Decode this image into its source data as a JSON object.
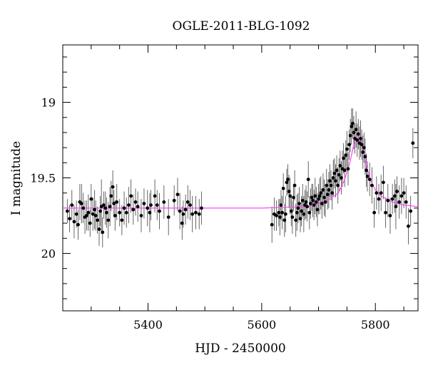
{
  "chart_data": {
    "type": "scatter",
    "title": "OGLE-2011-BLG-1092",
    "xlabel": "HJD - 2450000",
    "ylabel": "I magnitude",
    "xlim": [
      5250,
      5875
    ],
    "ylim": [
      20.38,
      18.62
    ],
    "y_inverted": true,
    "x_major_ticks": [
      5400,
      5600,
      5800
    ],
    "y_major_ticks": [
      19,
      19.5,
      20
    ],
    "grid": false,
    "legend": "none",
    "colors": {
      "points": "#000000",
      "model": "#ff44ff",
      "frame": "#000000"
    },
    "model": {
      "baseline_mag": 19.7,
      "curve": [
        [
          5250,
          19.7
        ],
        [
          5600,
          19.7
        ],
        [
          5680,
          19.69
        ],
        [
          5700,
          19.67
        ],
        [
          5720,
          19.64
        ],
        [
          5735,
          19.6
        ],
        [
          5745,
          19.52
        ],
        [
          5755,
          19.4
        ],
        [
          5762,
          19.28
        ],
        [
          5767,
          19.21
        ],
        [
          5772,
          19.22
        ],
        [
          5778,
          19.3
        ],
        [
          5785,
          19.43
        ],
        [
          5792,
          19.52
        ],
        [
          5800,
          19.58
        ],
        [
          5810,
          19.62
        ],
        [
          5830,
          19.66
        ],
        [
          5850,
          19.68
        ],
        [
          5875,
          19.69
        ]
      ]
    },
    "series": [
      {
        "points": [
          [
            5258,
            19.72,
            0.08
          ],
          [
            5262,
            19.77,
            0.09
          ],
          [
            5266,
            19.68,
            0.1
          ],
          [
            5270,
            19.79,
            0.11
          ],
          [
            5274,
            19.74,
            0.09
          ],
          [
            5277,
            19.81,
            0.1
          ],
          [
            5280,
            19.66,
            0.12
          ],
          [
            5283,
            19.67,
            0.13
          ],
          [
            5286,
            19.7,
            0.1
          ],
          [
            5289,
            19.76,
            0.11
          ],
          [
            5292,
            19.75,
            0.1
          ],
          [
            5295,
            19.73,
            0.12
          ],
          [
            5298,
            19.8,
            0.09
          ],
          [
            5300,
            19.64,
            0.1
          ],
          [
            5303,
            19.74,
            0.11
          ],
          [
            5306,
            19.71,
            0.13
          ],
          [
            5308,
            19.75,
            0.1
          ],
          [
            5311,
            19.78,
            0.09
          ],
          [
            5314,
            19.84,
            0.11
          ],
          [
            5316,
            19.72,
            0.1
          ],
          [
            5318,
            19.69,
            0.18
          ],
          [
            5320,
            19.86,
            0.1
          ],
          [
            5322,
            19.68,
            0.09
          ],
          [
            5325,
            19.7,
            0.11
          ],
          [
            5327,
            19.73,
            0.1
          ],
          [
            5330,
            19.78,
            0.12
          ],
          [
            5333,
            19.69,
            0.13
          ],
          [
            5335,
            19.62,
            0.1
          ],
          [
            5338,
            19.56,
            0.11
          ],
          [
            5340,
            19.67,
            0.09
          ],
          [
            5342,
            19.75,
            0.1
          ],
          [
            5345,
            19.66,
            0.12
          ],
          [
            5350,
            19.73,
            0.09
          ],
          [
            5354,
            19.78,
            0.1
          ],
          [
            5358,
            19.7,
            0.11
          ],
          [
            5362,
            19.73,
            0.1
          ],
          [
            5366,
            19.68,
            0.12
          ],
          [
            5370,
            19.62,
            0.11
          ],
          [
            5374,
            19.71,
            0.1
          ],
          [
            5378,
            19.66,
            0.09
          ],
          [
            5382,
            19.69,
            0.1
          ],
          [
            5388,
            19.75,
            0.11
          ],
          [
            5393,
            19.67,
            0.1
          ],
          [
            5399,
            19.7,
            0.12
          ],
          [
            5403,
            19.73,
            0.13
          ],
          [
            5405,
            19.68,
            0.1
          ],
          [
            5412,
            19.62,
            0.11
          ],
          [
            5416,
            19.68,
            0.1
          ],
          [
            5420,
            19.72,
            0.12
          ],
          [
            5428,
            19.66,
            0.11
          ],
          [
            5436,
            19.76,
            0.12
          ],
          [
            5446,
            19.65,
            0.1
          ],
          [
            5452,
            19.61,
            0.11
          ],
          [
            5456,
            19.72,
            0.12
          ],
          [
            5460,
            19.8,
            0.11
          ],
          [
            5462,
            19.74,
            0.09
          ],
          [
            5466,
            19.71,
            0.1
          ],
          [
            5470,
            19.66,
            0.11
          ],
          [
            5474,
            19.68,
            0.1
          ],
          [
            5478,
            19.74,
            0.12
          ],
          [
            5484,
            19.73,
            0.11
          ],
          [
            5490,
            19.74,
            0.1
          ],
          [
            5494,
            19.7,
            0.11
          ],
          [
            5618,
            19.81,
            0.12
          ],
          [
            5622,
            19.74,
            0.11
          ],
          [
            5626,
            19.75,
            0.1
          ],
          [
            5630,
            19.73,
            0.09
          ],
          [
            5632,
            19.76,
            0.12
          ],
          [
            5634,
            19.68,
            0.1
          ],
          [
            5636,
            19.73,
            0.11
          ],
          [
            5638,
            19.57,
            0.1
          ],
          [
            5640,
            19.78,
            0.11
          ],
          [
            5642,
            19.74,
            0.12
          ],
          [
            5644,
            19.53,
            0.09
          ],
          [
            5646,
            19.51,
            0.1
          ],
          [
            5648,
            19.59,
            0.11
          ],
          [
            5650,
            19.62,
            0.12
          ],
          [
            5652,
            19.72,
            0.1
          ],
          [
            5654,
            19.76,
            0.11
          ],
          [
            5656,
            19.63,
            0.09
          ],
          [
            5658,
            19.55,
            0.1
          ],
          [
            5660,
            19.78,
            0.11
          ],
          [
            5662,
            19.73,
            0.12
          ],
          [
            5664,
            19.7,
            0.1
          ],
          [
            5666,
            19.67,
            0.11
          ],
          [
            5668,
            19.77,
            0.09
          ],
          [
            5670,
            19.72,
            0.1
          ],
          [
            5672,
            19.65,
            0.11
          ],
          [
            5674,
            19.74,
            0.12
          ],
          [
            5676,
            19.68,
            0.1
          ],
          [
            5678,
            19.66,
            0.11
          ],
          [
            5680,
            19.69,
            0.1
          ],
          [
            5682,
            19.51,
            0.12
          ],
          [
            5684,
            19.73,
            0.11
          ],
          [
            5686,
            19.67,
            0.1
          ],
          [
            5688,
            19.63,
            0.09
          ],
          [
            5690,
            19.65,
            0.11
          ],
          [
            5692,
            19.68,
            0.1
          ],
          [
            5694,
            19.62,
            0.12
          ],
          [
            5696,
            19.66,
            0.1
          ],
          [
            5698,
            19.71,
            0.11
          ],
          [
            5700,
            19.64,
            0.1
          ],
          [
            5702,
            19.62,
            0.12
          ],
          [
            5704,
            19.6,
            0.11
          ],
          [
            5706,
            19.67,
            0.1
          ],
          [
            5708,
            19.58,
            0.11
          ],
          [
            5710,
            19.63,
            0.12
          ],
          [
            5712,
            19.66,
            0.1
          ],
          [
            5714,
            19.55,
            0.11
          ],
          [
            5716,
            19.61,
            0.1
          ],
          [
            5718,
            19.58,
            0.12
          ],
          [
            5720,
            19.52,
            0.11
          ],
          [
            5722,
            19.55,
            0.1
          ],
          [
            5724,
            19.6,
            0.11
          ],
          [
            5726,
            19.5,
            0.12
          ],
          [
            5728,
            19.47,
            0.1
          ],
          [
            5730,
            19.52,
            0.11
          ],
          [
            5732,
            19.45,
            0.1
          ],
          [
            5734,
            19.55,
            0.12
          ],
          [
            5736,
            19.48,
            0.11
          ],
          [
            5738,
            19.42,
            0.1
          ],
          [
            5740,
            19.5,
            0.11
          ],
          [
            5742,
            19.44,
            0.12
          ],
          [
            5744,
            19.37,
            0.1
          ],
          [
            5746,
            19.45,
            0.11
          ],
          [
            5748,
            19.35,
            0.1
          ],
          [
            5750,
            19.31,
            0.12
          ],
          [
            5752,
            19.44,
            0.11
          ],
          [
            5754,
            19.28,
            0.1
          ],
          [
            5756,
            19.22,
            0.11
          ],
          [
            5758,
            19.16,
            0.12
          ],
          [
            5760,
            19.14,
            0.1
          ],
          [
            5762,
            19.2,
            0.11
          ],
          [
            5764,
            19.24,
            0.1
          ],
          [
            5766,
            19.18,
            0.12
          ],
          [
            5768,
            19.25,
            0.11
          ],
          [
            5770,
            19.21,
            0.1
          ],
          [
            5772,
            19.27,
            0.11
          ],
          [
            5774,
            19.24,
            0.12
          ],
          [
            5776,
            19.28,
            0.1
          ],
          [
            5778,
            19.33,
            0.11
          ],
          [
            5780,
            19.3,
            0.1
          ],
          [
            5782,
            19.36,
            0.12
          ],
          [
            5784,
            19.45,
            0.11
          ],
          [
            5786,
            19.49,
            0.1
          ],
          [
            5790,
            19.51,
            0.11
          ],
          [
            5794,
            19.55,
            0.12
          ],
          [
            5798,
            19.73,
            0.1
          ],
          [
            5802,
            19.6,
            0.11
          ],
          [
            5806,
            19.64,
            0.1
          ],
          [
            5810,
            19.6,
            0.12
          ],
          [
            5814,
            19.53,
            0.11
          ],
          [
            5818,
            19.73,
            0.1
          ],
          [
            5822,
            19.65,
            0.11
          ],
          [
            5826,
            19.75,
            0.12
          ],
          [
            5830,
            19.64,
            0.1
          ],
          [
            5834,
            19.62,
            0.11
          ],
          [
            5836,
            19.69,
            0.15
          ],
          [
            5838,
            19.59,
            0.1
          ],
          [
            5842,
            19.66,
            0.11
          ],
          [
            5846,
            19.62,
            0.12
          ],
          [
            5850,
            19.6,
            0.1
          ],
          [
            5854,
            19.66,
            0.11
          ],
          [
            5858,
            19.82,
            0.12
          ],
          [
            5862,
            19.72,
            0.1
          ],
          [
            5866,
            19.27,
            0.1
          ]
        ]
      }
    ]
  }
}
